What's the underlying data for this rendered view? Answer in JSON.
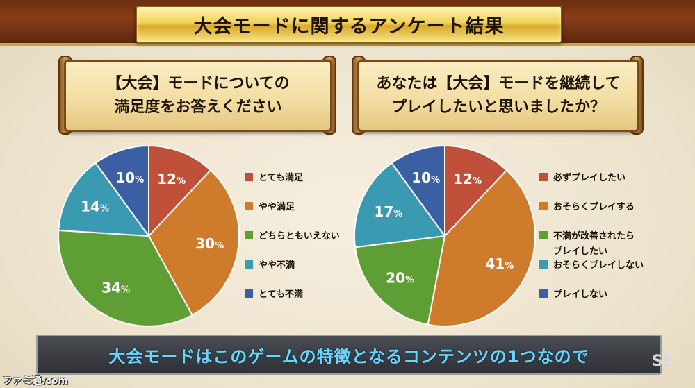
{
  "title": "大会モードに関するアンケート結果",
  "caption": "大会モードはこのゲームの特徴となるコンテンツの1つなので",
  "logo_text": "SE",
  "watermark": "ファミ通.com",
  "chart_data": [
    {
      "type": "pie",
      "title_lines": [
        "【大会】モードについての",
        "満足度をお答えください"
      ],
      "categories": [
        "とても満足",
        "やや満足",
        "どちらともいえない",
        "やや不満",
        "とても不満"
      ],
      "legend_lines": [
        [
          "とても満足"
        ],
        [
          "やや満足"
        ],
        [
          "どちらともいえない"
        ],
        [
          "やや不満"
        ],
        [
          "とても不満"
        ]
      ],
      "values": [
        12,
        30,
        34,
        14,
        10
      ],
      "unit": "%",
      "colors": [
        "#c0503a",
        "#cf7b2c",
        "#5f9e34",
        "#3a9ab2",
        "#3a5fa3"
      ],
      "legend": "right"
    },
    {
      "type": "pie",
      "title_lines": [
        "あなたは【大会】モードを継続して",
        "プレイしたいと思いましたか？"
      ],
      "categories": [
        "必ずプレイしたい",
        "おそらくプレイする",
        "不満が改善されたらプレイしたい",
        "おそらくプレイしない",
        "プレイしない"
      ],
      "legend_lines": [
        [
          "必ずプレイしたい"
        ],
        [
          "おそらくプレイする"
        ],
        [
          "不満が改善されたら",
          "プレイしたい"
        ],
        [
          "おそらくプレイしない"
        ],
        [
          "プレイしない"
        ]
      ],
      "values": [
        12,
        41,
        20,
        17,
        10
      ],
      "unit": "%",
      "colors": [
        "#c0503a",
        "#cf7b2c",
        "#5f9e34",
        "#3a9ab2",
        "#3a5fa3"
      ],
      "legend": "right"
    }
  ]
}
